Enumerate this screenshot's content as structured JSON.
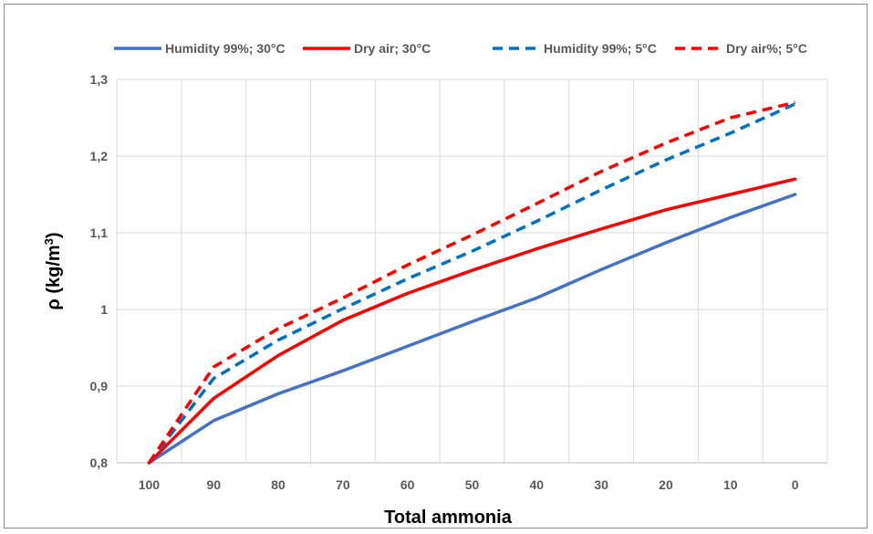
{
  "chart_data": {
    "type": "line",
    "title": "",
    "xlabel": "Total ammonia",
    "ylabel_main": "ρ (kg/m",
    "ylabel_sup": "3",
    "ylabel_end": ")",
    "x": [
      100,
      90,
      80,
      70,
      60,
      50,
      40,
      30,
      20,
      10,
      0
    ],
    "x_tick_labels": [
      "100",
      "90",
      "80",
      "70",
      "60",
      "50",
      "40",
      "30",
      "20",
      "10",
      "0"
    ],
    "y_tick_labels": [
      "0,8",
      "0,9",
      "1",
      "1,1",
      "1,2",
      "1,3"
    ],
    "y_ticks": [
      0.8,
      0.9,
      1.0,
      1.1,
      1.2,
      1.3
    ],
    "ylim": [
      0.8,
      1.3
    ],
    "grid": true,
    "legend_position": "top",
    "series": [
      {
        "name": "Humidity 99%; 30°C",
        "color": "#4472C4",
        "dashed": false,
        "values": [
          0.8,
          0.855,
          0.89,
          0.92,
          0.952,
          0.984,
          1.015,
          1.052,
          1.087,
          1.12,
          1.15
        ]
      },
      {
        "name": "Dry air; 30°C",
        "color": "#FF0000",
        "dashed": false,
        "values": [
          0.8,
          0.884,
          0.94,
          0.986,
          1.021,
          1.051,
          1.079,
          1.105,
          1.13,
          1.15,
          1.17
        ]
      },
      {
        "name": "Humidity 99%; 5°C",
        "color": "#0070C0",
        "dashed": true,
        "values": [
          0.8,
          0.91,
          0.96,
          1.001,
          1.04,
          1.076,
          1.115,
          1.156,
          1.195,
          1.23,
          1.268
        ]
      },
      {
        "name": "Dry air%; 5°C",
        "color": "#FF0000",
        "dashed": true,
        "values": [
          0.8,
          0.925,
          0.975,
          1.015,
          1.058,
          1.097,
          1.138,
          1.18,
          1.217,
          1.25,
          1.27
        ]
      }
    ]
  }
}
